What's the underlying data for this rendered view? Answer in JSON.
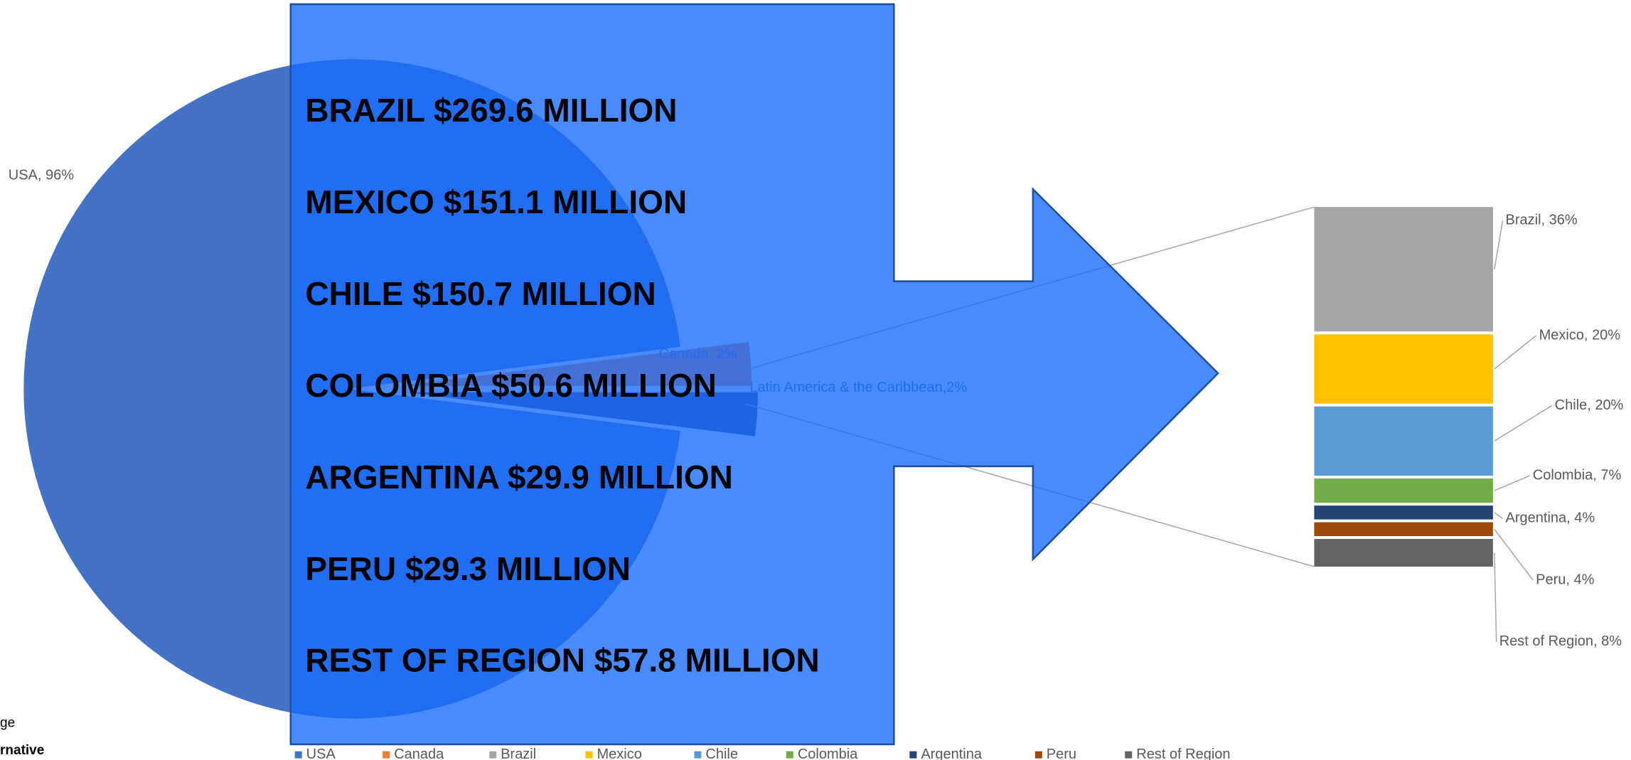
{
  "chart_data": {
    "type": "pie",
    "pie": {
      "categories": [
        "USA",
        "Canada",
        "Latin America & the Caribbean"
      ],
      "values": [
        96,
        2,
        2
      ],
      "value_labels": [
        "USA, 96%",
        "Canada, 2%",
        "Latin America & the Caribbean,2%"
      ],
      "colors": [
        "#4472c4",
        "#ed7d31",
        "#264478"
      ]
    },
    "bar": {
      "categories": [
        "Brazil",
        "Mexico",
        "Chile",
        "Colombia",
        "Argentina",
        "Peru",
        "Rest of Region"
      ],
      "values": [
        36,
        20,
        20,
        7,
        4,
        4,
        8
      ],
      "value_labels": [
        "Brazil, 36%",
        "Mexico, 20%",
        "Chile, 20%",
        "Colombia, 7%",
        "Argentina, 4%",
        "Peru, 4%",
        "Rest of Region, 8%"
      ],
      "colors": [
        "#a5a5a5",
        "#ffc000",
        "#5b9bd5",
        "#70ad47",
        "#264478",
        "#9e480e",
        "#636363"
      ]
    },
    "overlay_text": [
      "BRAZIL $269.6 MILLION",
      "MEXICO $151.1 MILLION",
      "CHILE $150.7 MILLION",
      "COLOMBIA $50.6 MILLION",
      "ARGENTINA $29.9 MILLION",
      "PERU $29.3 MILLION",
      "REST OF REGION $57.8 MILLION"
    ],
    "cut_text": [
      "ge",
      "rnative"
    ]
  }
}
